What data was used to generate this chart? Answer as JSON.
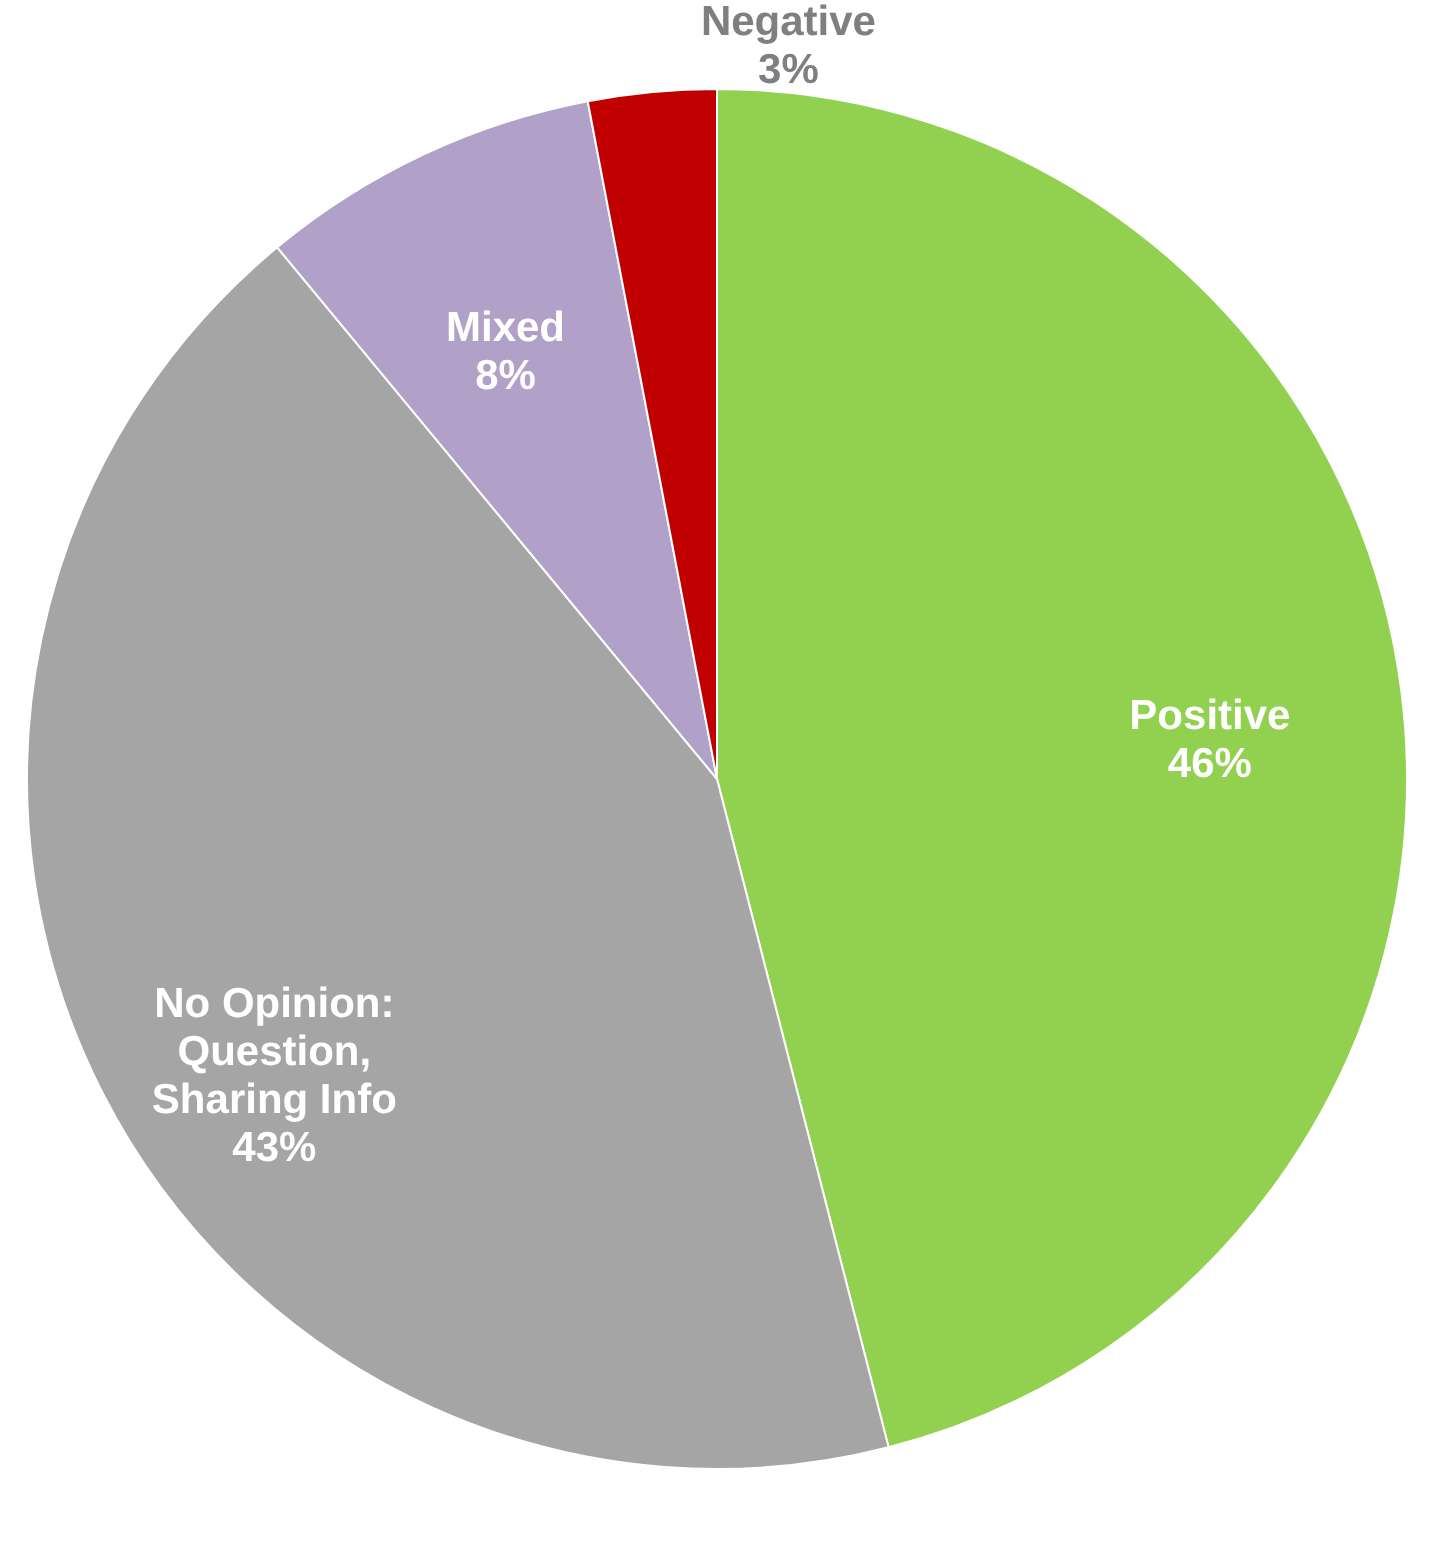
{
  "chart_data": {
    "type": "pie",
    "categories": [
      "Positive",
      "No Opinion: Question, Sharing Info",
      "Mixed",
      "Negative"
    ],
    "values": [
      46,
      43,
      8,
      3
    ],
    "colors": [
      "#92d050",
      "#a5a5a5",
      "#b1a0c7",
      "#c00000"
    ],
    "value_labels": [
      "46%",
      "43%",
      "8%",
      "3%"
    ]
  }
}
